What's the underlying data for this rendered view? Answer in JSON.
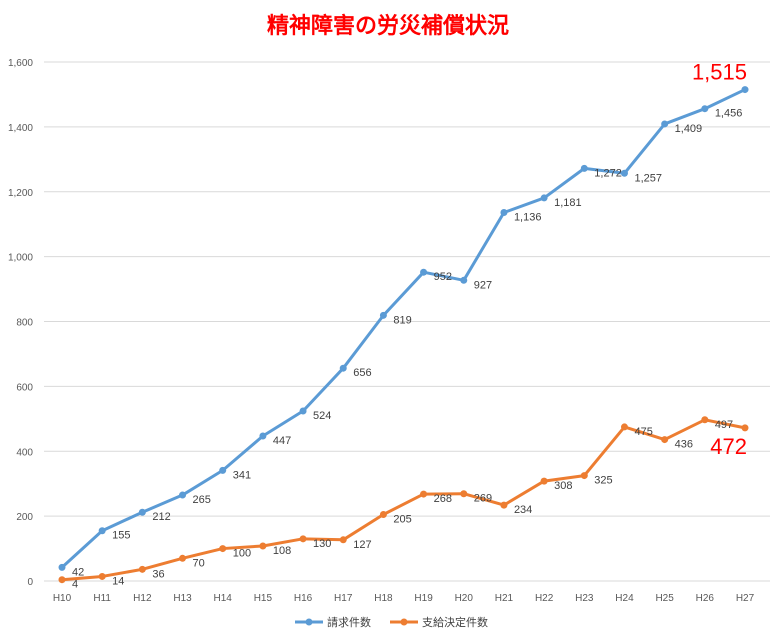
{
  "chart_data": {
    "type": "line",
    "title": "精神障害の労災補償状況",
    "categories": [
      "H10",
      "H11",
      "H12",
      "H13",
      "H14",
      "H15",
      "H16",
      "H17",
      "H18",
      "H19",
      "H20",
      "H21",
      "H22",
      "H23",
      "H24",
      "H25",
      "H26",
      "H27"
    ],
    "ylim": [
      0,
      1600
    ],
    "yticks": [
      "0",
      "200",
      "400",
      "600",
      "800",
      "1,000",
      "1,200",
      "1,400",
      "1,600"
    ],
    "grid": true,
    "legend_position": "bottom",
    "series": [
      {
        "name": "請求件数",
        "color": "#5b9bd5",
        "values": [
          42,
          155,
          212,
          265,
          341,
          447,
          524,
          656,
          819,
          952,
          927,
          1136,
          1181,
          1272,
          1257,
          1409,
          1456,
          1515
        ],
        "labels": [
          "42",
          "155",
          "212",
          "265",
          "341",
          "447",
          "524",
          "656",
          "819",
          "952",
          "927",
          "1,136",
          "1,181",
          "1,272",
          "1,257",
          "1,409",
          "1,456",
          "1,515"
        ]
      },
      {
        "name": "支給決定件数",
        "color": "#ed7d31",
        "values": [
          4,
          14,
          36,
          70,
          100,
          108,
          130,
          127,
          205,
          268,
          269,
          234,
          308,
          325,
          475,
          436,
          497,
          472
        ],
        "labels": [
          "4",
          "14",
          "36",
          "70",
          "100",
          "108",
          "130",
          "127",
          "205",
          "268",
          "269",
          "234",
          "308",
          "325",
          "475",
          "436",
          "497",
          "472"
        ]
      }
    ],
    "highlight_color": "#ff0000"
  }
}
